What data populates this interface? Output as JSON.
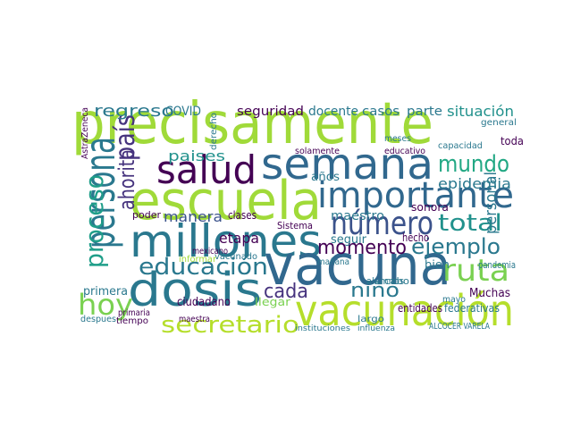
{
  "words": [
    "precisamente",
    "semana",
    "salud",
    "escuela",
    "importante",
    "persona",
    "millones",
    "número",
    "vacuna",
    "dosis",
    "vacunación",
    "educación",
    "hoy",
    "ahorita",
    "país",
    "proceso",
    "mundo",
    "epidemia",
    "ejemplo",
    "total",
    "ruta",
    "momento",
    "cada",
    "niño",
    "secretario",
    "personal",
    "regreso",
    "paises",
    "manera",
    "etapa",
    "maestro",
    "seguridad",
    "docente",
    "casos",
    "parte",
    "situación",
    "COVID",
    "entidades",
    "federativas",
    "Muchas",
    "primera",
    "ciudadano",
    "llegar",
    "años",
    "seguir",
    "bien",
    "hecho",
    "toda",
    "pandemia",
    "cabo",
    "maestra",
    "tiempo",
    "despues",
    "Sistema",
    "vacunado",
    "clases",
    "poder",
    "alumnos",
    "mayo",
    "ALCOCER VARELA",
    "largo",
    "educativo",
    "sonora",
    "AstraZeneca",
    "derecho",
    "solamente",
    "informar",
    "mexicano",
    "capacidad",
    "general",
    "primaria",
    "instituciones",
    "influenza",
    "meses",
    "mañana"
  ]
}
